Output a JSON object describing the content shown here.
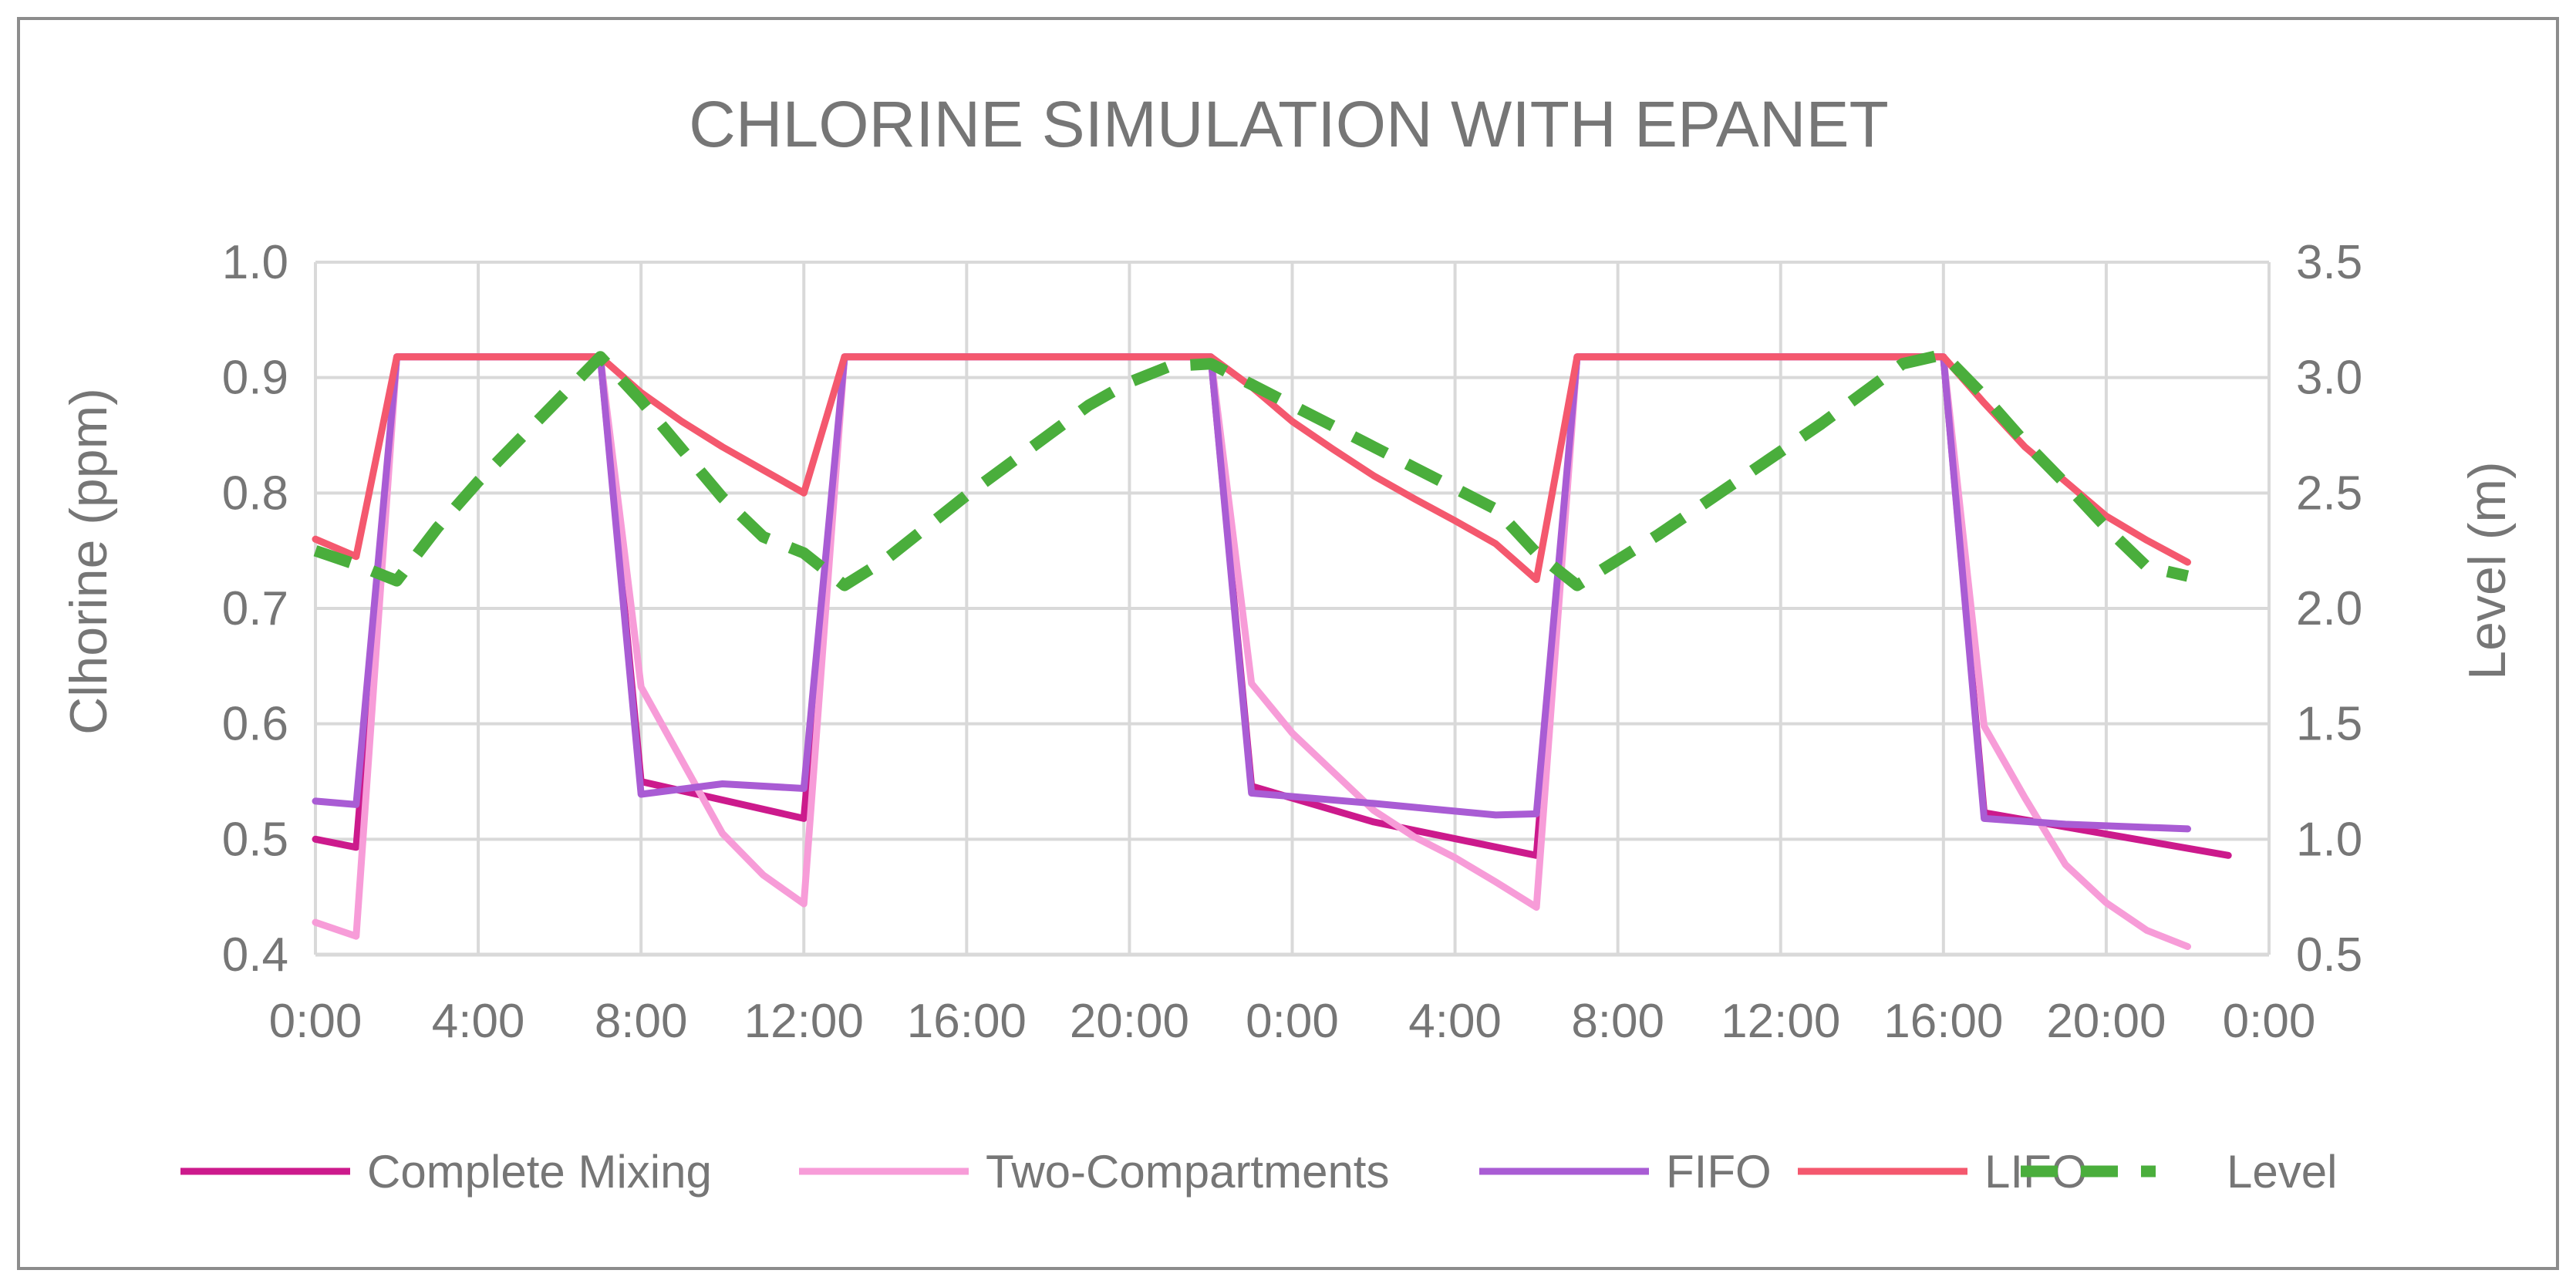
{
  "chart_data": {
    "type": "line",
    "title": "CHLORINE SIMULATION WITH EPANET",
    "ylabel": "Clhorine (ppm)",
    "y2label": "Level (m)",
    "ylim": [
      0.4,
      1.0
    ],
    "y2lim": [
      0.5,
      3.5
    ],
    "yticks": [
      "0.4",
      "0.5",
      "0.6",
      "0.7",
      "0.8",
      "0.9",
      "1.0"
    ],
    "y2ticks": [
      "0.5",
      "1.0",
      "1.5",
      "2.0",
      "2.5",
      "3.0",
      "3.5"
    ],
    "x_unit": "hours",
    "xlim": [
      0,
      48
    ],
    "xticks": [
      "0:00",
      "4:00",
      "8:00",
      "12:00",
      "16:00",
      "20:00",
      "0:00",
      "4:00",
      "8:00",
      "12:00",
      "16:00",
      "20:00",
      "0:00"
    ],
    "grid": true,
    "legend_position": "bottom",
    "series": [
      {
        "name": "Complete Mixing",
        "axis": "left",
        "color": "#cc1a8c",
        "dash": false,
        "points": [
          [
            0,
            0.5
          ],
          [
            1,
            0.493
          ],
          [
            2,
            0.918
          ],
          [
            7,
            0.918
          ],
          [
            8,
            0.55
          ],
          [
            12,
            0.518
          ],
          [
            13,
            0.918
          ],
          [
            22,
            0.918
          ],
          [
            23,
            0.546
          ],
          [
            26,
            0.515
          ],
          [
            30,
            0.486
          ],
          [
            31,
            0.918
          ],
          [
            40,
            0.918
          ],
          [
            41,
            0.523
          ],
          [
            47,
            0.486
          ]
        ]
      },
      {
        "name": "Two-Compartments",
        "axis": "left",
        "color": "#f79cd8",
        "dash": false,
        "points": [
          [
            0,
            0.428
          ],
          [
            1,
            0.416
          ],
          [
            2,
            0.918
          ],
          [
            7,
            0.918
          ],
          [
            8,
            0.632
          ],
          [
            10,
            0.505
          ],
          [
            11,
            0.469
          ],
          [
            12,
            0.444
          ],
          [
            13,
            0.918
          ],
          [
            22,
            0.918
          ],
          [
            23,
            0.635
          ],
          [
            24,
            0.592
          ],
          [
            26,
            0.525
          ],
          [
            27,
            0.502
          ],
          [
            28,
            0.484
          ],
          [
            29,
            0.463
          ],
          [
            30,
            0.441
          ],
          [
            31,
            0.918
          ],
          [
            40,
            0.918
          ],
          [
            41,
            0.598
          ],
          [
            42,
            0.536
          ],
          [
            43,
            0.478
          ],
          [
            44,
            0.445
          ],
          [
            45,
            0.421
          ],
          [
            46,
            0.407
          ]
        ]
      },
      {
        "name": "FIFO",
        "axis": "left",
        "color": "#a95cd4",
        "dash": false,
        "points": [
          [
            0,
            0.533
          ],
          [
            1,
            0.53
          ],
          [
            2,
            0.918
          ],
          [
            7,
            0.918
          ],
          [
            8,
            0.539
          ],
          [
            10,
            0.548
          ],
          [
            12,
            0.544
          ],
          [
            13,
            0.918
          ],
          [
            22,
            0.918
          ],
          [
            23,
            0.54
          ],
          [
            26,
            0.531
          ],
          [
            29,
            0.521
          ],
          [
            30,
            0.522
          ],
          [
            31,
            0.918
          ],
          [
            40,
            0.918
          ],
          [
            41,
            0.518
          ],
          [
            43,
            0.513
          ],
          [
            46,
            0.509
          ]
        ]
      },
      {
        "name": "LIFO",
        "axis": "left",
        "color": "#f4586e",
        "dash": false,
        "points": [
          [
            0,
            0.76
          ],
          [
            1,
            0.745
          ],
          [
            2,
            0.918
          ],
          [
            7,
            0.918
          ],
          [
            8,
            0.887
          ],
          [
            9,
            0.862
          ],
          [
            10,
            0.84
          ],
          [
            11,
            0.82
          ],
          [
            12,
            0.8
          ],
          [
            13,
            0.918
          ],
          [
            22,
            0.918
          ],
          [
            23,
            0.892
          ],
          [
            24,
            0.862
          ],
          [
            25,
            0.838
          ],
          [
            26,
            0.815
          ],
          [
            27,
            0.795
          ],
          [
            28,
            0.776
          ],
          [
            29,
            0.756
          ],
          [
            30,
            0.725
          ],
          [
            31,
            0.918
          ],
          [
            40,
            0.918
          ],
          [
            41,
            0.878
          ],
          [
            42,
            0.84
          ],
          [
            43,
            0.81
          ],
          [
            44,
            0.78
          ],
          [
            45,
            0.759
          ],
          [
            46,
            0.74
          ]
        ]
      },
      {
        "name": "Level",
        "axis": "right",
        "color": "#4aae3c",
        "dash": true,
        "points": [
          [
            0,
            2.25
          ],
          [
            1,
            2.19
          ],
          [
            2,
            2.12
          ],
          [
            3,
            2.35
          ],
          [
            4,
            2.55
          ],
          [
            5,
            2.73
          ],
          [
            6,
            2.91
          ],
          [
            7,
            3.09
          ],
          [
            8,
            2.9
          ],
          [
            9,
            2.69
          ],
          [
            10,
            2.48
          ],
          [
            11,
            2.31
          ],
          [
            12,
            2.24
          ],
          [
            13,
            2.1
          ],
          [
            14,
            2.21
          ],
          [
            15,
            2.35
          ],
          [
            16,
            2.49
          ],
          [
            17,
            2.62
          ],
          [
            18,
            2.75
          ],
          [
            19,
            2.88
          ],
          [
            20,
            2.98
          ],
          [
            21,
            3.05
          ],
          [
            22,
            3.06
          ],
          [
            23,
            2.97
          ],
          [
            24,
            2.88
          ],
          [
            25,
            2.79
          ],
          [
            26,
            2.7
          ],
          [
            27,
            2.61
          ],
          [
            28,
            2.52
          ],
          [
            29,
            2.43
          ],
          [
            30,
            2.24
          ],
          [
            31,
            2.1
          ],
          [
            32,
            2.21
          ],
          [
            33,
            2.32
          ],
          [
            34,
            2.44
          ],
          [
            35,
            2.56
          ],
          [
            36,
            2.68
          ],
          [
            37,
            2.8
          ],
          [
            38,
            2.93
          ],
          [
            39,
            3.06
          ],
          [
            40,
            3.1
          ],
          [
            41,
            2.92
          ],
          [
            42,
            2.72
          ],
          [
            43,
            2.54
          ],
          [
            44,
            2.35
          ],
          [
            45,
            2.18
          ],
          [
            46,
            2.14
          ]
        ]
      }
    ]
  }
}
